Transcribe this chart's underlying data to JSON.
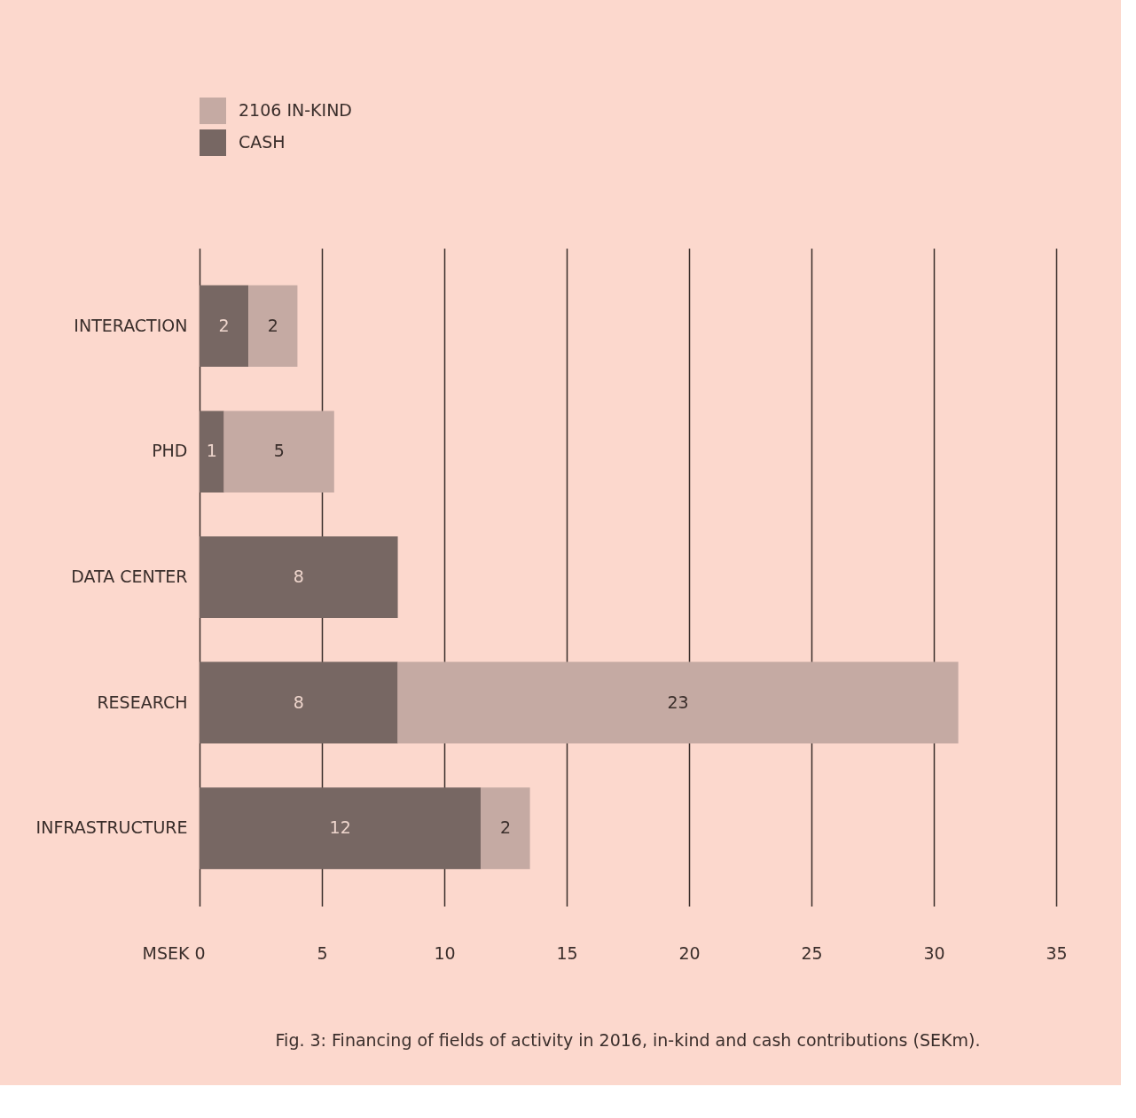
{
  "chart_data": {
    "type": "bar",
    "orientation": "horizontal",
    "stacked": true,
    "categories": [
      "INTERACTION",
      "PHD",
      "DATA CENTER",
      "RESEARCH",
      "INFRASTRUCTURE"
    ],
    "series": [
      {
        "name": "CASH",
        "color": "#776763",
        "values": [
          2,
          1,
          8.1,
          8.1,
          11.5
        ],
        "value_labels": [
          "2",
          "1",
          "8",
          "8",
          "12"
        ]
      },
      {
        "name": "2106 IN-KIND",
        "color": "#c5aaa3",
        "values": [
          2,
          4.5,
          null,
          22.9,
          2
        ],
        "value_labels": [
          "2",
          "5",
          null,
          "23",
          "2"
        ]
      }
    ],
    "xlabel": "MSEK",
    "xlim": [
      0,
      35
    ],
    "xticks": [
      0,
      5,
      10,
      15,
      20,
      25,
      30,
      35
    ],
    "grid": "x",
    "legend": "top left",
    "annotations": [
      "Fig. 3: Financing of fields of activity in 2016, in-kind and cash contributions (SEKm)."
    ]
  }
}
